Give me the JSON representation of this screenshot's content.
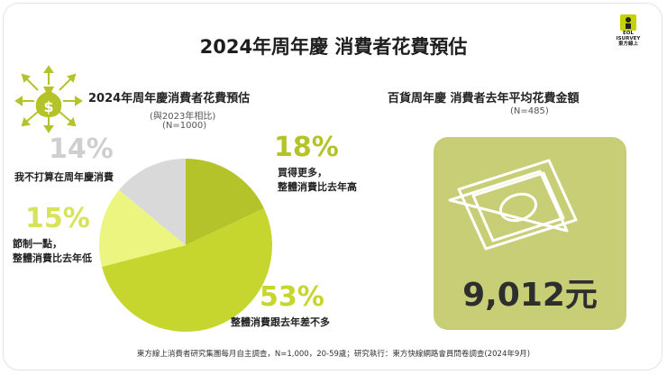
{
  "header": {
    "title": "2024年周年慶 消費者花費預估"
  },
  "logo": {
    "line1": "EOL",
    "line2": "ISURVEY",
    "line3": "東方線上"
  },
  "colors": {
    "accent_dark": "#b5c32b",
    "accent_light": "#ecf580",
    "neutral": "#d9d9d9",
    "panel": "#c7ce75"
  },
  "left": {
    "title": "2024年周年慶消費者花費預估",
    "subtitle1": "(與2023年相比)",
    "subtitle2": "(N=1000)"
  },
  "chart_data": {
    "type": "pie",
    "slices": [
      {
        "label": "買得更多，\n整體消費比去年高",
        "value": 18,
        "pct_text": "18%",
        "color": "#b5c32b"
      },
      {
        "label": "整體消費跟去年差不多",
        "value": 53,
        "pct_text": "53%",
        "color": "#c6d62e"
      },
      {
        "label": "節制一點，\n整體消費比去年低",
        "value": 15,
        "pct_text": "15%",
        "color": "#ecf580"
      },
      {
        "label": "我不打算在周年慶消費",
        "value": 14,
        "pct_text": "14%",
        "color": "#d9d9d9"
      }
    ]
  },
  "right": {
    "title": "百貨周年慶 消費者去年平均花費金額",
    "subtitle": "(N=485)",
    "amount": "9,012元"
  },
  "footer": {
    "text": "東方線上消費者研究集團每月自主調查，N=1,000，20-59歲；研究執行：東方快線網路會員問卷調查(2024年9月)"
  }
}
